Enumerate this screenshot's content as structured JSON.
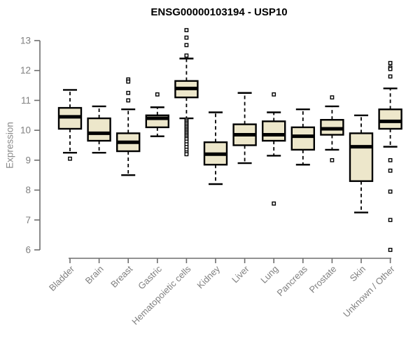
{
  "title": "ENSG00000103194 - USP10",
  "y_axis_label": "Expression",
  "colors": {
    "background": "#ffffff",
    "box_fill": "#EDE7CB",
    "box_border": "#000000",
    "median": "#000000",
    "whisker": "#000000",
    "outlier_border": "#000000",
    "outlier_fill": "#ffffff",
    "axis_line": "#6e6e6e",
    "axis_text": "#808080",
    "title_text": "#000000"
  },
  "chart_data": {
    "type": "boxplot",
    "title": "ENSG00000103194 - USP10",
    "xlabel": "",
    "ylabel": "Expression",
    "ylim": [
      5.8,
      13.5
    ],
    "yticks": [
      6,
      7,
      8,
      9,
      10,
      11,
      12,
      13
    ],
    "grid": false,
    "legend": "none",
    "categories": [
      "Bladder",
      "Brain",
      "Breast",
      "Gastric",
      "Hematopoietic cells",
      "Kidney",
      "Liver",
      "Lung",
      "Pancreas",
      "Prostate",
      "Skin",
      "Unknown / Other"
    ],
    "series": [
      {
        "name": "Bladder",
        "whisker_low": 9.25,
        "q1": 10.05,
        "median": 10.45,
        "q3": 10.75,
        "whisker_high": 11.35,
        "outliers": [
          9.05
        ]
      },
      {
        "name": "Brain",
        "whisker_low": 9.25,
        "q1": 9.65,
        "median": 9.9,
        "q3": 10.4,
        "whisker_high": 10.8,
        "outliers": []
      },
      {
        "name": "Breast",
        "whisker_low": 8.5,
        "q1": 9.3,
        "median": 9.6,
        "q3": 9.9,
        "whisker_high": 10.7,
        "outliers": [
          11.7,
          11.63,
          11.25,
          11.0
        ]
      },
      {
        "name": "Gastric",
        "whisker_low": 9.8,
        "q1": 10.1,
        "median": 10.4,
        "q3": 10.5,
        "whisker_high": 10.77,
        "outliers": [
          11.2
        ]
      },
      {
        "name": "Hematopoietic cells",
        "whisker_low": 10.4,
        "q1": 11.1,
        "median": 11.4,
        "q3": 11.65,
        "whisker_high": 12.4,
        "outliers": [
          13.35,
          13.1,
          12.85,
          12.5,
          10.35,
          10.3,
          10.25,
          10.2,
          10.15,
          10.1,
          10.05,
          10.0,
          9.95,
          9.9,
          9.85,
          9.8,
          9.75,
          9.7,
          9.62,
          9.53,
          9.44,
          9.35,
          9.26,
          9.2
        ]
      },
      {
        "name": "Kidney",
        "whisker_low": 8.2,
        "q1": 8.85,
        "median": 9.2,
        "q3": 9.6,
        "whisker_high": 10.6,
        "outliers": []
      },
      {
        "name": "Liver",
        "whisker_low": 8.9,
        "q1": 9.5,
        "median": 9.85,
        "q3": 10.2,
        "whisker_high": 11.25,
        "outliers": []
      },
      {
        "name": "Lung",
        "whisker_low": 9.15,
        "q1": 9.65,
        "median": 9.85,
        "q3": 10.3,
        "whisker_high": 10.6,
        "outliers": [
          11.2,
          7.55
        ]
      },
      {
        "name": "Pancreas",
        "whisker_low": 8.85,
        "q1": 9.35,
        "median": 9.8,
        "q3": 10.1,
        "whisker_high": 10.7,
        "outliers": []
      },
      {
        "name": "Prostate",
        "whisker_low": 9.35,
        "q1": 9.85,
        "median": 10.05,
        "q3": 10.35,
        "whisker_high": 10.8,
        "outliers": [
          11.1,
          9.0
        ]
      },
      {
        "name": "Skin",
        "whisker_low": 7.25,
        "q1": 8.3,
        "median": 9.45,
        "q3": 9.9,
        "whisker_high": 10.5,
        "outliers": []
      },
      {
        "name": "Unknown / Other",
        "whisker_low": 9.45,
        "q1": 10.05,
        "median": 10.3,
        "q3": 10.7,
        "whisker_high": 11.4,
        "outliers": [
          12.25,
          12.1,
          12.05,
          11.8,
          9.0,
          8.65,
          7.95,
          7.0,
          6.0
        ]
      }
    ]
  }
}
